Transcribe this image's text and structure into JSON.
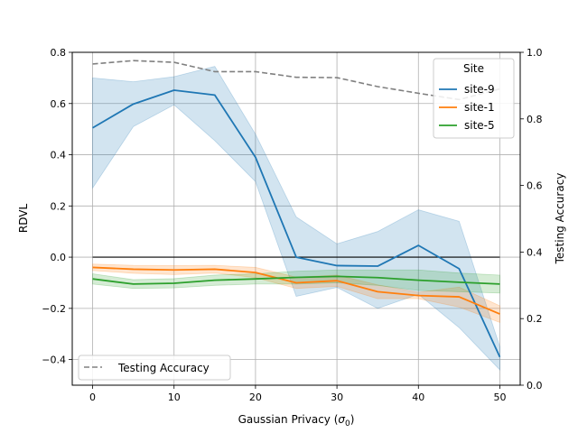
{
  "chart_data": {
    "type": "line",
    "xlabel_main": "Gaussian Privacy (",
    "xlabel_sym": "σ",
    "xlabel_sub": "0",
    "xlabel_end": ")",
    "ylabel": "RDVL",
    "y2label": "Testing Accuracy",
    "xlim": [
      -2.5,
      52.5
    ],
    "ylim": [
      -0.5,
      0.8
    ],
    "y2lim": [
      0.0,
      1.0
    ],
    "x_ticks": [
      0,
      10,
      20,
      30,
      40,
      50
    ],
    "y_ticks": [
      -0.4,
      -0.2,
      0.0,
      0.2,
      0.4,
      0.6,
      0.8
    ],
    "y_tick_labels": [
      "−0.4",
      "−0.2",
      "0.0",
      "0.2",
      "0.4",
      "0.6",
      "0.8"
    ],
    "y2_ticks": [
      0.0,
      0.2,
      0.4,
      0.6,
      0.8,
      1.0
    ],
    "y2_tick_labels": [
      "0.0",
      "0.2",
      "0.4",
      "0.6",
      "0.8",
      "1.0"
    ],
    "grid": true,
    "legend_title": "Site",
    "legend_placement": "top-right",
    "legend2_placement": "bottom-left",
    "zero_line": 0.0,
    "x": [
      0,
      5,
      10,
      15,
      20,
      25,
      30,
      35,
      40,
      45,
      50
    ],
    "series": [
      {
        "name": "site-9",
        "color": "#1f77b4",
        "values": [
          0.505,
          0.598,
          0.652,
          0.633,
          0.39,
          0.0,
          -0.033,
          -0.035,
          0.046,
          -0.045,
          -0.39
        ],
        "lower": [
          0.27,
          0.51,
          0.595,
          0.455,
          0.295,
          -0.153,
          -0.118,
          -0.2,
          -0.145,
          -0.275,
          -0.44
        ],
        "upper": [
          0.7,
          0.685,
          0.705,
          0.745,
          0.48,
          0.157,
          0.052,
          0.1,
          0.185,
          0.14,
          -0.35
        ]
      },
      {
        "name": "site-1",
        "color": "#ff7f0e",
        "values": [
          -0.04,
          -0.047,
          -0.05,
          -0.047,
          -0.06,
          -0.1,
          -0.092,
          -0.135,
          -0.15,
          -0.155,
          -0.222
        ],
        "lower": [
          -0.052,
          -0.063,
          -0.068,
          -0.062,
          -0.08,
          -0.122,
          -0.114,
          -0.162,
          -0.162,
          -0.195,
          -0.255
        ],
        "upper": [
          -0.027,
          -0.032,
          -0.033,
          -0.032,
          -0.04,
          -0.078,
          -0.07,
          -0.108,
          -0.137,
          -0.117,
          -0.19
        ]
      },
      {
        "name": "site-5",
        "color": "#2ca02c",
        "values": [
          -0.085,
          -0.105,
          -0.102,
          -0.09,
          -0.085,
          -0.079,
          -0.075,
          -0.08,
          -0.09,
          -0.098,
          -0.105
        ],
        "lower": [
          -0.105,
          -0.122,
          -0.12,
          -0.11,
          -0.105,
          -0.105,
          -0.1,
          -0.11,
          -0.13,
          -0.135,
          -0.14
        ],
        "upper": [
          -0.065,
          -0.088,
          -0.084,
          -0.07,
          -0.065,
          -0.055,
          -0.05,
          -0.05,
          -0.05,
          -0.062,
          -0.07
        ]
      }
    ],
    "secondary_series": {
      "name": "Testing Accuracy",
      "color": "#808080",
      "style": "dashed",
      "values": [
        0.965,
        0.975,
        0.97,
        0.942,
        0.942,
        0.925,
        0.924,
        0.897,
        0.877,
        0.858,
        0.89
      ]
    }
  }
}
